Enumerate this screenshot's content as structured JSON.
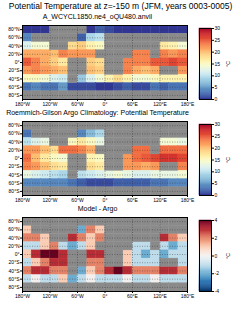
{
  "title": "Potential Temperature at z=-150 m (JFM, years 0003-0005)",
  "chart_data": [
    {
      "type": "heatmap",
      "title": "A_WCYCL1850.ne4_oQU480.anvil",
      "color": "rdylbu",
      "grid": true,
      "xlim": [
        -180,
        180
      ],
      "ylim": [
        -90,
        90
      ],
      "xticks": [
        {
          "value": -180,
          "label": "180°W"
        },
        {
          "value": -120,
          "label": "120°W"
        },
        {
          "value": -60,
          "label": "60°W"
        },
        {
          "value": 0,
          "label": "0°"
        },
        {
          "value": 60,
          "label": "60°E"
        },
        {
          "value": 120,
          "label": "120°E"
        },
        {
          "value": 180,
          "label": "180°E"
        }
      ],
      "yticks": [
        {
          "value": -80,
          "label": "80°S"
        },
        {
          "value": -60,
          "label": "60°S"
        },
        {
          "value": -40,
          "label": "40°S"
        },
        {
          "value": -20,
          "label": "20°S"
        },
        {
          "value": 0,
          "label": "0°"
        },
        {
          "value": 20,
          "label": "20°N"
        },
        {
          "value": 40,
          "label": "40°N"
        },
        {
          "value": 60,
          "label": "60°N"
        },
        {
          "value": 80,
          "label": "80°N"
        }
      ],
      "lon_edges": [
        -180,
        -160,
        -140,
        -120,
        -100,
        -80,
        -60,
        -40,
        -20,
        0,
        20,
        40,
        60,
        80,
        100,
        120,
        140,
        160,
        180
      ],
      "lat_edges": [
        90,
        70,
        50,
        30,
        10,
        -10,
        -30,
        -50,
        -70,
        -90
      ],
      "values": [
        [
          0,
          0,
          0,
          null,
          null,
          null,
          null,
          0,
          2,
          1,
          0,
          0,
          0,
          0,
          0,
          0,
          0,
          0
        ],
        [
          4,
          null,
          null,
          null,
          null,
          null,
          2,
          9,
          10,
          null,
          null,
          null,
          null,
          null,
          null,
          null,
          null,
          null
        ],
        [
          12,
          14,
          14,
          null,
          null,
          18,
          19,
          16,
          15,
          null,
          null,
          null,
          null,
          null,
          null,
          17,
          16,
          14
        ],
        [
          21,
          21,
          21,
          20,
          23,
          22,
          22,
          22,
          null,
          null,
          null,
          null,
          23,
          23,
          null,
          23,
          22,
          23
        ],
        [
          25,
          23,
          21,
          19,
          17,
          null,
          null,
          19,
          18,
          null,
          null,
          23,
          23,
          23,
          25,
          25,
          26,
          25
        ],
        [
          22,
          23,
          22,
          21,
          20,
          null,
          null,
          20,
          19,
          null,
          null,
          23,
          21,
          20,
          21,
          null,
          null,
          22
        ],
        [
          15,
          15,
          14,
          12,
          11,
          null,
          8,
          12,
          14,
          16,
          18,
          16,
          14,
          14,
          15,
          16,
          16,
          16
        ],
        [
          3,
          4,
          3,
          3,
          5,
          1,
          1,
          1,
          0,
          0,
          1,
          2,
          1,
          1,
          3,
          2,
          3,
          3
        ],
        [
          null,
          null,
          null,
          null,
          null,
          null,
          null,
          null,
          null,
          null,
          null,
          null,
          null,
          null,
          null,
          null,
          null,
          null
        ]
      ],
      "colorbar": {
        "range": [
          0,
          30
        ],
        "ticks": [
          0,
          5,
          10,
          15,
          20,
          25,
          30
        ],
        "label": "°C"
      }
    },
    {
      "type": "heatmap",
      "title": "Roemmich-Gilson Argo Climatology: Potential Temperature",
      "color": "rdylbu",
      "grid": true,
      "xlim": [
        -180,
        180
      ],
      "ylim": [
        -90,
        90
      ],
      "xticks": [
        {
          "value": -180,
          "label": "180°W"
        },
        {
          "value": -120,
          "label": "120°W"
        },
        {
          "value": -60,
          "label": "60°W"
        },
        {
          "value": 0,
          "label": "0°"
        },
        {
          "value": 60,
          "label": "60°E"
        },
        {
          "value": 120,
          "label": "120°E"
        },
        {
          "value": 180,
          "label": "180°E"
        }
      ],
      "yticks": [
        {
          "value": -80,
          "label": "80°S"
        },
        {
          "value": -60,
          "label": "60°S"
        },
        {
          "value": -40,
          "label": "40°S"
        },
        {
          "value": -20,
          "label": "20°S"
        },
        {
          "value": 0,
          "label": "0°"
        },
        {
          "value": 20,
          "label": "20°N"
        },
        {
          "value": 40,
          "label": "40°N"
        },
        {
          "value": 60,
          "label": "60°N"
        },
        {
          "value": 80,
          "label": "80°N"
        }
      ],
      "lon_edges": [
        -180,
        -160,
        -140,
        -120,
        -100,
        -80,
        -60,
        -40,
        -20,
        0,
        20,
        40,
        60,
        80,
        100,
        120,
        140,
        160,
        180
      ],
      "lat_edges": [
        90,
        70,
        50,
        30,
        10,
        -10,
        -30,
        -50,
        -70,
        -90
      ],
      "values": [
        [
          null,
          null,
          null,
          null,
          null,
          null,
          null,
          null,
          null,
          null,
          null,
          null,
          null,
          null,
          null,
          null,
          null,
          null
        ],
        [
          3,
          null,
          null,
          null,
          null,
          null,
          4,
          7,
          9,
          null,
          null,
          null,
          null,
          null,
          null,
          null,
          null,
          null
        ],
        [
          10,
          12,
          13,
          null,
          null,
          15,
          17,
          15,
          13,
          null,
          null,
          null,
          null,
          null,
          null,
          14,
          14,
          13
        ],
        [
          22,
          22,
          20,
          18,
          24,
          24,
          23,
          21,
          null,
          null,
          null,
          null,
          24,
          24,
          null,
          24,
          24,
          24
        ],
        [
          24,
          20,
          17,
          15,
          14,
          null,
          null,
          16,
          15,
          null,
          null,
          22,
          24,
          25,
          26,
          27,
          27,
          26
        ],
        [
          23,
          22,
          20,
          18,
          17,
          null,
          null,
          18,
          17,
          null,
          null,
          22,
          22,
          21,
          22,
          null,
          null,
          23
        ],
        [
          13,
          12,
          11,
          10,
          9,
          null,
          10,
          11,
          12,
          13,
          14,
          13,
          12,
          12,
          13,
          13,
          13,
          14
        ],
        [
          4,
          4,
          4,
          4,
          4,
          3,
          2,
          1,
          1,
          1,
          2,
          2,
          2,
          2,
          3,
          3,
          4,
          4
        ],
        [
          null,
          null,
          null,
          null,
          null,
          null,
          null,
          null,
          null,
          null,
          null,
          null,
          null,
          null,
          null,
          null,
          null,
          null
        ]
      ],
      "colorbar": {
        "range": [
          0,
          30
        ],
        "ticks": [
          0,
          5,
          10,
          15,
          20,
          25,
          30
        ],
        "label": "°C"
      }
    },
    {
      "type": "heatmap",
      "title": "Model - Argo",
      "color": "rdbu",
      "grid": true,
      "xlim": [
        -180,
        180
      ],
      "ylim": [
        -90,
        90
      ],
      "xticks": [
        {
          "value": -180,
          "label": "180°W"
        },
        {
          "value": -120,
          "label": "120°W"
        },
        {
          "value": -60,
          "label": "60°W"
        },
        {
          "value": 0,
          "label": "0°"
        },
        {
          "value": 60,
          "label": "60°E"
        },
        {
          "value": 120,
          "label": "120°E"
        },
        {
          "value": 180,
          "label": "180°E"
        }
      ],
      "yticks": [
        {
          "value": -80,
          "label": "80°S"
        },
        {
          "value": -60,
          "label": "60°S"
        },
        {
          "value": -40,
          "label": "40°S"
        },
        {
          "value": -20,
          "label": "20°S"
        },
        {
          "value": 0,
          "label": "0°"
        },
        {
          "value": 20,
          "label": "20°N"
        },
        {
          "value": 40,
          "label": "40°N"
        },
        {
          "value": 60,
          "label": "60°N"
        },
        {
          "value": 80,
          "label": "80°N"
        }
      ],
      "lon_edges": [
        -180,
        -160,
        -140,
        -120,
        -100,
        -80,
        -60,
        -40,
        -20,
        0,
        20,
        40,
        60,
        80,
        100,
        120,
        140,
        160,
        180
      ],
      "lat_edges": [
        90,
        70,
        50,
        30,
        10,
        -10,
        -30,
        -50,
        -70,
        -90
      ],
      "values": [
        [
          null,
          null,
          null,
          null,
          null,
          null,
          null,
          null,
          null,
          null,
          null,
          null,
          null,
          null,
          null,
          null,
          null,
          null
        ],
        [
          1,
          null,
          null,
          null,
          null,
          null,
          -2,
          2,
          1,
          null,
          null,
          null,
          null,
          null,
          null,
          null,
          null,
          null
        ],
        [
          2,
          2,
          1,
          null,
          null,
          3,
          2,
          1,
          2,
          null,
          null,
          null,
          null,
          null,
          null,
          3,
          2,
          1
        ],
        [
          -1,
          -1,
          1,
          2,
          -1,
          -2,
          -1,
          1,
          null,
          null,
          null,
          null,
          -1,
          -1,
          null,
          -1,
          -2,
          -1
        ],
        [
          1,
          3,
          4,
          4,
          3,
          null,
          null,
          3,
          3,
          null,
          null,
          1,
          -1,
          -2,
          -1,
          -2,
          -1,
          -1
        ],
        [
          -1,
          1,
          2,
          3,
          3,
          null,
          null,
          2,
          2,
          null,
          null,
          1,
          -1,
          -1,
          -1,
          null,
          null,
          -1
        ],
        [
          2,
          3,
          3,
          2,
          2,
          null,
          -2,
          1,
          2,
          3,
          4,
          3,
          2,
          2,
          2,
          3,
          3,
          2
        ],
        [
          -1,
          0,
          -1,
          -1,
          1,
          -2,
          -1,
          0,
          -1,
          -1,
          -1,
          0,
          -1,
          -1,
          0,
          -1,
          -1,
          -1
        ],
        [
          null,
          null,
          null,
          null,
          null,
          null,
          null,
          null,
          null,
          null,
          null,
          null,
          null,
          null,
          null,
          null,
          null,
          null
        ]
      ],
      "colorbar": {
        "range": [
          -4,
          4
        ],
        "ticks": [
          -4,
          -2,
          0,
          2,
          4
        ],
        "label": "°C"
      }
    }
  ]
}
